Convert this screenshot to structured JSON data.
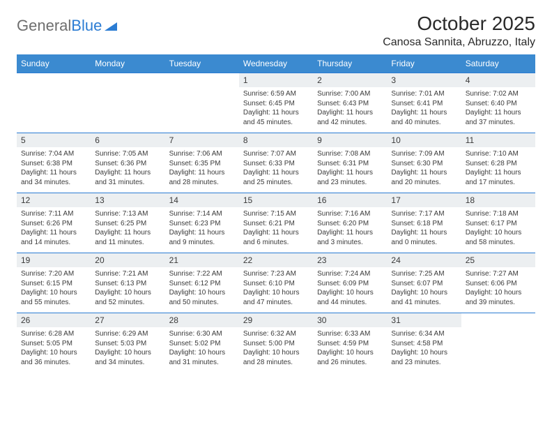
{
  "logo": {
    "word1": "General",
    "word2": "Blue"
  },
  "title": "October 2025",
  "location": "Canosa Sannita, Abruzzo, Italy",
  "colors": {
    "header_bg": "#3b8ad0",
    "header_text": "#ffffff",
    "row_divider": "#2b7cd3",
    "daynum_bg": "#eceff1",
    "body_text": "#3a3a3a",
    "logo_gray": "#6e6e6e",
    "logo_blue": "#2b7cd3",
    "background": "#ffffff"
  },
  "typography": {
    "title_fontsize": 28,
    "location_fontsize": 16,
    "header_fontsize": 12,
    "daynum_fontsize": 12,
    "body_fontsize": 10
  },
  "dayHeaders": [
    "Sunday",
    "Monday",
    "Tuesday",
    "Wednesday",
    "Thursday",
    "Friday",
    "Saturday"
  ],
  "weeks": [
    [
      {
        "n": "",
        "sr": "",
        "ss": "",
        "dl": ""
      },
      {
        "n": "",
        "sr": "",
        "ss": "",
        "dl": ""
      },
      {
        "n": "",
        "sr": "",
        "ss": "",
        "dl": ""
      },
      {
        "n": "1",
        "sr": "6:59 AM",
        "ss": "6:45 PM",
        "dl": "11 hours and 45 minutes."
      },
      {
        "n": "2",
        "sr": "7:00 AM",
        "ss": "6:43 PM",
        "dl": "11 hours and 42 minutes."
      },
      {
        "n": "3",
        "sr": "7:01 AM",
        "ss": "6:41 PM",
        "dl": "11 hours and 40 minutes."
      },
      {
        "n": "4",
        "sr": "7:02 AM",
        "ss": "6:40 PM",
        "dl": "11 hours and 37 minutes."
      }
    ],
    [
      {
        "n": "5",
        "sr": "7:04 AM",
        "ss": "6:38 PM",
        "dl": "11 hours and 34 minutes."
      },
      {
        "n": "6",
        "sr": "7:05 AM",
        "ss": "6:36 PM",
        "dl": "11 hours and 31 minutes."
      },
      {
        "n": "7",
        "sr": "7:06 AM",
        "ss": "6:35 PM",
        "dl": "11 hours and 28 minutes."
      },
      {
        "n": "8",
        "sr": "7:07 AM",
        "ss": "6:33 PM",
        "dl": "11 hours and 25 minutes."
      },
      {
        "n": "9",
        "sr": "7:08 AM",
        "ss": "6:31 PM",
        "dl": "11 hours and 23 minutes."
      },
      {
        "n": "10",
        "sr": "7:09 AM",
        "ss": "6:30 PM",
        "dl": "11 hours and 20 minutes."
      },
      {
        "n": "11",
        "sr": "7:10 AM",
        "ss": "6:28 PM",
        "dl": "11 hours and 17 minutes."
      }
    ],
    [
      {
        "n": "12",
        "sr": "7:11 AM",
        "ss": "6:26 PM",
        "dl": "11 hours and 14 minutes."
      },
      {
        "n": "13",
        "sr": "7:13 AM",
        "ss": "6:25 PM",
        "dl": "11 hours and 11 minutes."
      },
      {
        "n": "14",
        "sr": "7:14 AM",
        "ss": "6:23 PM",
        "dl": "11 hours and 9 minutes."
      },
      {
        "n": "15",
        "sr": "7:15 AM",
        "ss": "6:21 PM",
        "dl": "11 hours and 6 minutes."
      },
      {
        "n": "16",
        "sr": "7:16 AM",
        "ss": "6:20 PM",
        "dl": "11 hours and 3 minutes."
      },
      {
        "n": "17",
        "sr": "7:17 AM",
        "ss": "6:18 PM",
        "dl": "11 hours and 0 minutes."
      },
      {
        "n": "18",
        "sr": "7:18 AM",
        "ss": "6:17 PM",
        "dl": "10 hours and 58 minutes."
      }
    ],
    [
      {
        "n": "19",
        "sr": "7:20 AM",
        "ss": "6:15 PM",
        "dl": "10 hours and 55 minutes."
      },
      {
        "n": "20",
        "sr": "7:21 AM",
        "ss": "6:13 PM",
        "dl": "10 hours and 52 minutes."
      },
      {
        "n": "21",
        "sr": "7:22 AM",
        "ss": "6:12 PM",
        "dl": "10 hours and 50 minutes."
      },
      {
        "n": "22",
        "sr": "7:23 AM",
        "ss": "6:10 PM",
        "dl": "10 hours and 47 minutes."
      },
      {
        "n": "23",
        "sr": "7:24 AM",
        "ss": "6:09 PM",
        "dl": "10 hours and 44 minutes."
      },
      {
        "n": "24",
        "sr": "7:25 AM",
        "ss": "6:07 PM",
        "dl": "10 hours and 41 minutes."
      },
      {
        "n": "25",
        "sr": "7:27 AM",
        "ss": "6:06 PM",
        "dl": "10 hours and 39 minutes."
      }
    ],
    [
      {
        "n": "26",
        "sr": "6:28 AM",
        "ss": "5:05 PM",
        "dl": "10 hours and 36 minutes."
      },
      {
        "n": "27",
        "sr": "6:29 AM",
        "ss": "5:03 PM",
        "dl": "10 hours and 34 minutes."
      },
      {
        "n": "28",
        "sr": "6:30 AM",
        "ss": "5:02 PM",
        "dl": "10 hours and 31 minutes."
      },
      {
        "n": "29",
        "sr": "6:32 AM",
        "ss": "5:00 PM",
        "dl": "10 hours and 28 minutes."
      },
      {
        "n": "30",
        "sr": "6:33 AM",
        "ss": "4:59 PM",
        "dl": "10 hours and 26 minutes."
      },
      {
        "n": "31",
        "sr": "6:34 AM",
        "ss": "4:58 PM",
        "dl": "10 hours and 23 minutes."
      },
      {
        "n": "",
        "sr": "",
        "ss": "",
        "dl": ""
      }
    ]
  ],
  "labels": {
    "sunrise": "Sunrise:",
    "sunset": "Sunset:",
    "daylight": "Daylight:"
  }
}
